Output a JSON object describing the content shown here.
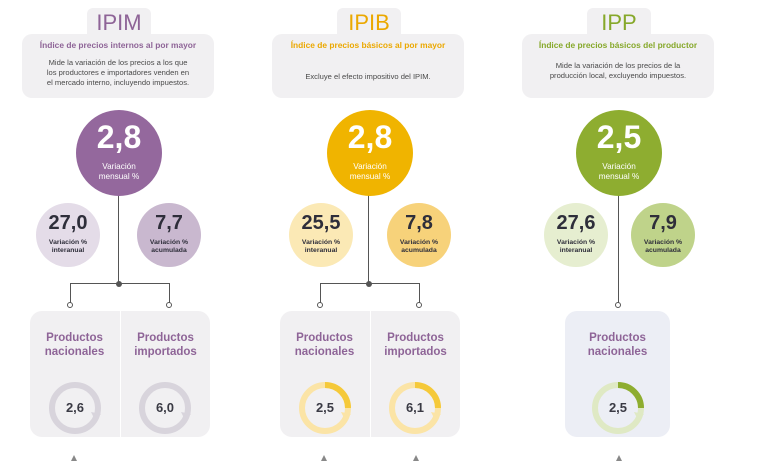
{
  "ipim": {
    "title": "IPIM",
    "subtitle": "Índice de precios internos al por mayor",
    "desc_lines": [
      "Mide la variación de los precios a los que",
      "los productores e importadores venden en",
      "el mercado interno, incluyendo impuestos."
    ],
    "main_value": "2,8",
    "main_label_1": "Variación",
    "main_label_2": "mensual %",
    "interanual_value": "27,0",
    "interanual_label_1": "Variación %",
    "interanual_label_2": "interanual",
    "acumulada_value": "7,7",
    "acumulada_label_1": "Variación %",
    "acumulada_label_2": "acumulada",
    "nacionales_label_1": "Productos",
    "nacionales_label_2": "nacionales",
    "nacionales_value": "2,6",
    "importados_label_1": "Productos",
    "importados_label_2": "importados",
    "importados_value": "6,0",
    "colors": {
      "main": "#94689d",
      "light": "#e4dce8",
      "mid": "#c9b8cf",
      "title": "#8e6497"
    }
  },
  "ipib": {
    "title": "IPIB",
    "subtitle": "Índice de precios básicos al por mayor",
    "desc_lines": [
      "Excluye el efecto impositivo del IPIM."
    ],
    "main_value": "2,8",
    "main_label_1": "Variación",
    "main_label_2": "mensual %",
    "interanual_value": "25,5",
    "interanual_label_1": "Variación %",
    "interanual_label_2": "interanual",
    "acumulada_value": "7,8",
    "acumulada_label_1": "Variación %",
    "acumulada_label_2": "acumulada",
    "nacionales_label_1": "Productos",
    "nacionales_label_2": "nacionales",
    "nacionales_value": "2,5",
    "importados_label_1": "Productos",
    "importados_label_2": "importados",
    "importados_value": "6,1",
    "colors": {
      "main": "#f0b400",
      "light": "#fbe9b5",
      "mid": "#f7d27a",
      "title": "#eba800"
    }
  },
  "ipp": {
    "title": "IPP",
    "subtitle": "Índice de precios básicos del productor",
    "desc_lines": [
      "Mide la variación de los precios de la",
      "producción local, excluyendo impuestos."
    ],
    "main_value": "2,5",
    "main_label_1": "Variación",
    "main_label_2": "mensual %",
    "interanual_value": "27,6",
    "interanual_label_1": "Variación %",
    "interanual_label_2": "interanual",
    "acumulada_value": "7,9",
    "acumulada_label_1": "Variación %",
    "acumulada_label_2": "acumulada",
    "nacionales_label_1": "Productos",
    "nacionales_label_2": "nacionales",
    "nacionales_value": "2,5",
    "colors": {
      "main": "#8ead30",
      "light": "#e6eed0",
      "mid": "#bfd38a",
      "title": "#86a82a"
    }
  }
}
